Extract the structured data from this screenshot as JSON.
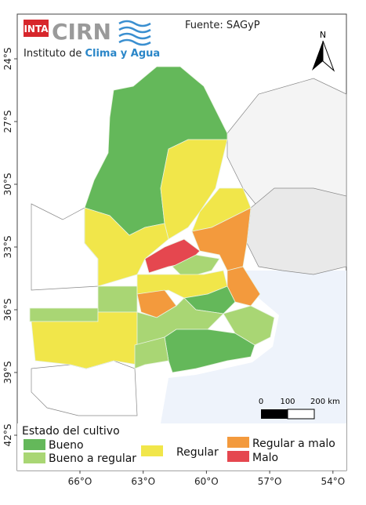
{
  "logo": {
    "inta": "INTA",
    "cirn": "CIRN",
    "subtitle_prefix": "Instituto de",
    "subtitle_highlight": "Clima y Agua"
  },
  "source": "Fuente: SAGyP",
  "north": "N",
  "lat_labels": [
    "24°S",
    "27°S",
    "30°S",
    "33°S",
    "36°S",
    "39°S",
    "42°S"
  ],
  "lon_labels": [
    "66°O",
    "63°O",
    "60°O",
    "57°O",
    "54°O"
  ],
  "scale": {
    "start": "0",
    "mid": "100",
    "end": "200 km"
  },
  "legend": {
    "title": "Estado del cultivo",
    "items": [
      {
        "label": "Bueno",
        "color": "#64b85a"
      },
      {
        "label": "Bueno a regular",
        "color": "#a9d674"
      },
      {
        "label": "Regular",
        "color": "#f1e64a"
      },
      {
        "label": "Regular a malo",
        "color": "#f39a3d"
      },
      {
        "label": "Malo",
        "color": "#e5474f"
      }
    ]
  }
}
